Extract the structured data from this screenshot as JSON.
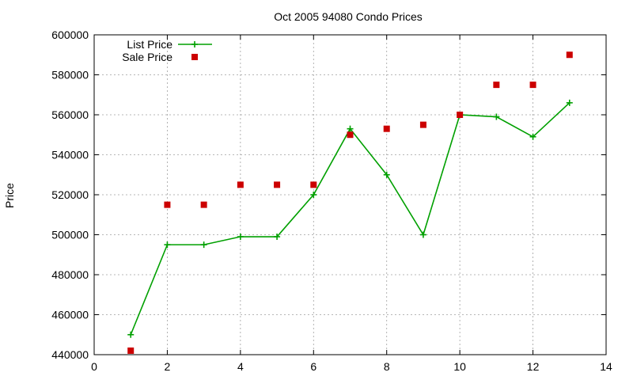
{
  "chart_data": {
    "type": "line",
    "title": "Oct 2005 94080 Condo Prices",
    "xlabel": "",
    "ylabel": "Price",
    "xlim": [
      0,
      14
    ],
    "ylim": [
      440000,
      600000
    ],
    "xticks": [
      0,
      2,
      4,
      6,
      8,
      10,
      12,
      14
    ],
    "yticks": [
      440000,
      460000,
      480000,
      500000,
      520000,
      540000,
      560000,
      580000,
      600000
    ],
    "grid": true,
    "legend_position": "top-left",
    "series": [
      {
        "name": "List Price",
        "style": "line-plus",
        "color": "#00a000",
        "points": [
          {
            "x": 1,
            "y": 450000
          },
          {
            "x": 2,
            "y": 495000
          },
          {
            "x": 3,
            "y": 495000
          },
          {
            "x": 4,
            "y": 499000
          },
          {
            "x": 5,
            "y": 499000
          },
          {
            "x": 6,
            "y": 520000
          },
          {
            "x": 7,
            "y": 553000
          },
          {
            "x": 8,
            "y": 530000
          },
          {
            "x": 9,
            "y": 500000
          },
          {
            "x": 10,
            "y": 560000
          },
          {
            "x": 11,
            "y": 559000
          },
          {
            "x": 12,
            "y": 549000
          },
          {
            "x": 13,
            "y": 566000
          }
        ]
      },
      {
        "name": "Sale Price",
        "style": "square",
        "color": "#cc0000",
        "points": [
          {
            "x": 1,
            "y": 442000
          },
          {
            "x": 2,
            "y": 515000
          },
          {
            "x": 3,
            "y": 515000
          },
          {
            "x": 4,
            "y": 525000
          },
          {
            "x": 5,
            "y": 525000
          },
          {
            "x": 6,
            "y": 525000
          },
          {
            "x": 7,
            "y": 550000
          },
          {
            "x": 8,
            "y": 553000
          },
          {
            "x": 9,
            "y": 555000
          },
          {
            "x": 10,
            "y": 560000
          },
          {
            "x": 11,
            "y": 575000
          },
          {
            "x": 12,
            "y": 575000
          },
          {
            "x": 13,
            "y": 590000
          }
        ]
      }
    ]
  }
}
